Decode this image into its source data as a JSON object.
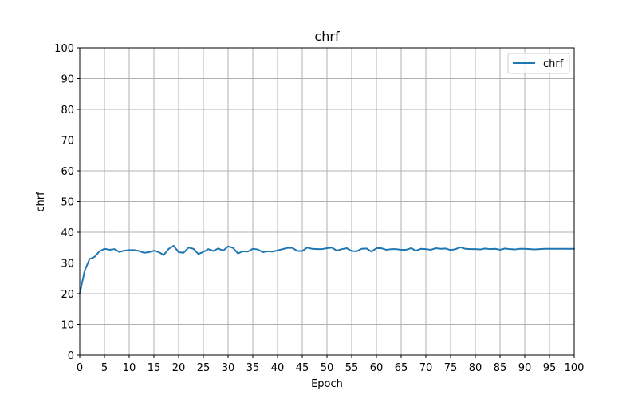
{
  "chart_data": {
    "type": "line",
    "title": "chrf",
    "xlabel": "Epoch",
    "ylabel": "chrf",
    "xlim": [
      0,
      100
    ],
    "ylim": [
      0,
      100
    ],
    "xticks": [
      0,
      5,
      10,
      15,
      20,
      25,
      30,
      35,
      40,
      45,
      50,
      55,
      60,
      65,
      70,
      75,
      80,
      85,
      90,
      95,
      100
    ],
    "yticks": [
      0,
      10,
      20,
      30,
      40,
      50,
      60,
      70,
      80,
      90,
      100
    ],
    "grid": true,
    "legend": {
      "placement": "top-right"
    },
    "colors": {
      "series": "#1f77b4",
      "grid": "#b0b0b0"
    },
    "series": [
      {
        "name": "chrf",
        "x": [
          0,
          1,
          2,
          3,
          4,
          5,
          6,
          7,
          8,
          9,
          10,
          11,
          12,
          13,
          14,
          15,
          16,
          17,
          18,
          19,
          20,
          21,
          22,
          23,
          24,
          25,
          26,
          27,
          28,
          29,
          30,
          31,
          32,
          33,
          34,
          35,
          36,
          37,
          38,
          39,
          40,
          41,
          42,
          43,
          44,
          45,
          46,
          47,
          48,
          49,
          50,
          51,
          52,
          53,
          54,
          55,
          56,
          57,
          58,
          59,
          60,
          61,
          62,
          63,
          64,
          65,
          66,
          67,
          68,
          69,
          70,
          71,
          72,
          73,
          74,
          75,
          76,
          77,
          78,
          79,
          80,
          81,
          82,
          83,
          84,
          85,
          86,
          87,
          88,
          89,
          90,
          91,
          92,
          93,
          94,
          95,
          96,
          97,
          98,
          99,
          100
        ],
        "values": [
          20.0,
          27.5,
          31.3,
          32.0,
          33.8,
          34.6,
          34.3,
          34.5,
          33.6,
          34.0,
          34.2,
          34.2,
          33.9,
          33.3,
          33.5,
          34.0,
          33.5,
          32.6,
          34.6,
          35.6,
          33.5,
          33.3,
          35.0,
          34.6,
          32.9,
          33.6,
          34.5,
          33.9,
          34.7,
          34.0,
          35.4,
          34.9,
          33.1,
          33.8,
          33.7,
          34.6,
          34.4,
          33.5,
          33.8,
          33.7,
          34.1,
          34.5,
          34.9,
          34.9,
          33.9,
          33.9,
          35.0,
          34.6,
          34.5,
          34.5,
          34.8,
          35.0,
          34.0,
          34.5,
          34.8,
          33.9,
          33.8,
          34.6,
          34.7,
          33.7,
          34.8,
          34.8,
          34.3,
          34.5,
          34.5,
          34.3,
          34.3,
          34.8,
          34.0,
          34.6,
          34.5,
          34.3,
          34.8,
          34.6,
          34.7,
          34.2,
          34.5,
          35.1,
          34.6,
          34.5,
          34.5,
          34.4,
          34.7,
          34.5,
          34.6,
          34.3,
          34.7,
          34.5,
          34.4,
          34.6,
          34.6,
          34.5,
          34.4,
          34.5,
          34.6,
          34.6,
          34.6,
          34.6,
          34.6,
          34.6,
          34.6
        ]
      }
    ]
  }
}
